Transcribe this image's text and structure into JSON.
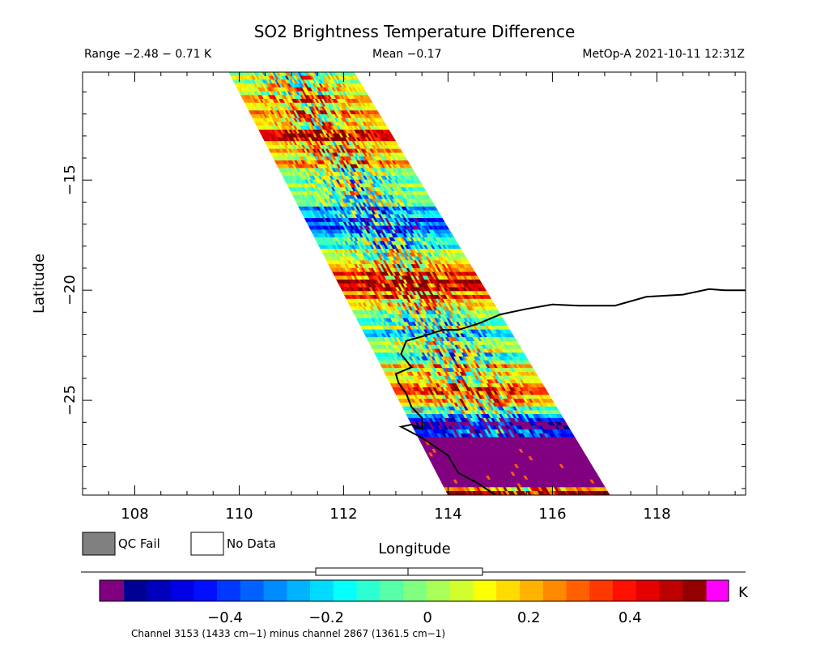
{
  "title": "SO2 Brightness Temperature Difference",
  "range_text": "Range −2.48 − 0.71 K",
  "mean_text": "Mean −0.17",
  "satellite_text": "MetOp-A 2021-10-11 12:31Z",
  "xlabel": "Longitude",
  "ylabel": "Latitude",
  "x_ticks": [
    "108",
    "110",
    "112",
    "114",
    "116",
    "118"
  ],
  "y_ticks": [
    "−15",
    "−20",
    "−25"
  ],
  "legend": {
    "qc_fail": "QC Fail",
    "no_data": "No Data"
  },
  "colorbar": {
    "unit": "K",
    "ticks": [
      "−0.4",
      "−0.2",
      "0",
      "0.2",
      "0.4"
    ],
    "under_color": "#800080",
    "over_color": "#ff00ff",
    "qc_fail_color": "#808080"
  },
  "footnote": "Channel 3153 (1433 cm−1) minus channel 2867 (1361.5 cm−1)",
  "chart_data": {
    "type": "heatmap",
    "xlim": [
      107,
      119.7
    ],
    "ylim": [
      -29.3,
      -10.1
    ],
    "x_tick_values": [
      108,
      110,
      112,
      114,
      116,
      118
    ],
    "y_tick_values": [
      -15,
      -20,
      -25
    ],
    "color_range": [
      -0.6,
      0.55
    ],
    "color_tick_values": [
      -0.4,
      -0.2,
      0,
      0.2,
      0.4
    ],
    "swath_corners": [
      [
        109.8,
        -10.1
      ],
      [
        112.2,
        -10.1
      ],
      [
        117.1,
        -29.3
      ],
      [
        114.0,
        -29.3
      ]
    ],
    "coastline": [
      [
        119.7,
        -20.0
      ],
      [
        119.3,
        -20.0
      ],
      [
        119.0,
        -19.95
      ],
      [
        118.5,
        -20.2
      ],
      [
        117.8,
        -20.3
      ],
      [
        117.2,
        -20.7
      ],
      [
        116.5,
        -20.7
      ],
      [
        116.0,
        -20.65
      ],
      [
        115.5,
        -20.85
      ],
      [
        115.0,
        -21.1
      ],
      [
        114.6,
        -21.5
      ],
      [
        114.2,
        -21.8
      ],
      [
        113.9,
        -21.8
      ],
      [
        113.5,
        -22.1
      ],
      [
        113.2,
        -22.3
      ],
      [
        113.1,
        -22.9
      ],
      [
        113.3,
        -23.5
      ],
      [
        113.0,
        -23.8
      ],
      [
        113.05,
        -24.2
      ],
      [
        113.2,
        -24.7
      ],
      [
        113.3,
        -25.3
      ],
      [
        113.5,
        -25.8
      ],
      [
        113.5,
        -26.3
      ],
      [
        113.3,
        -26.1
      ],
      [
        113.1,
        -26.2
      ],
      [
        113.5,
        -26.7
      ],
      [
        114.0,
        -27.5
      ],
      [
        114.2,
        -28.3
      ],
      [
        114.6,
        -28.8
      ],
      [
        114.9,
        -29.3
      ]
    ],
    "sample_bands": [
      {
        "lat": -11.5,
        "value": 0.12
      },
      {
        "lat": -13.0,
        "value": 0.35
      },
      {
        "lat": -15.5,
        "value": -0.1
      },
      {
        "lat": -17.0,
        "value": -0.4
      },
      {
        "lat": -19.5,
        "value": 0.45
      },
      {
        "lat": -22.0,
        "value": -0.15
      },
      {
        "lat": -24.5,
        "value": 0.3
      },
      {
        "lat": -26.0,
        "value": -0.45
      },
      {
        "lat": -27.5,
        "value": -0.6
      },
      {
        "lat": -29.0,
        "value": 0.4
      }
    ]
  }
}
